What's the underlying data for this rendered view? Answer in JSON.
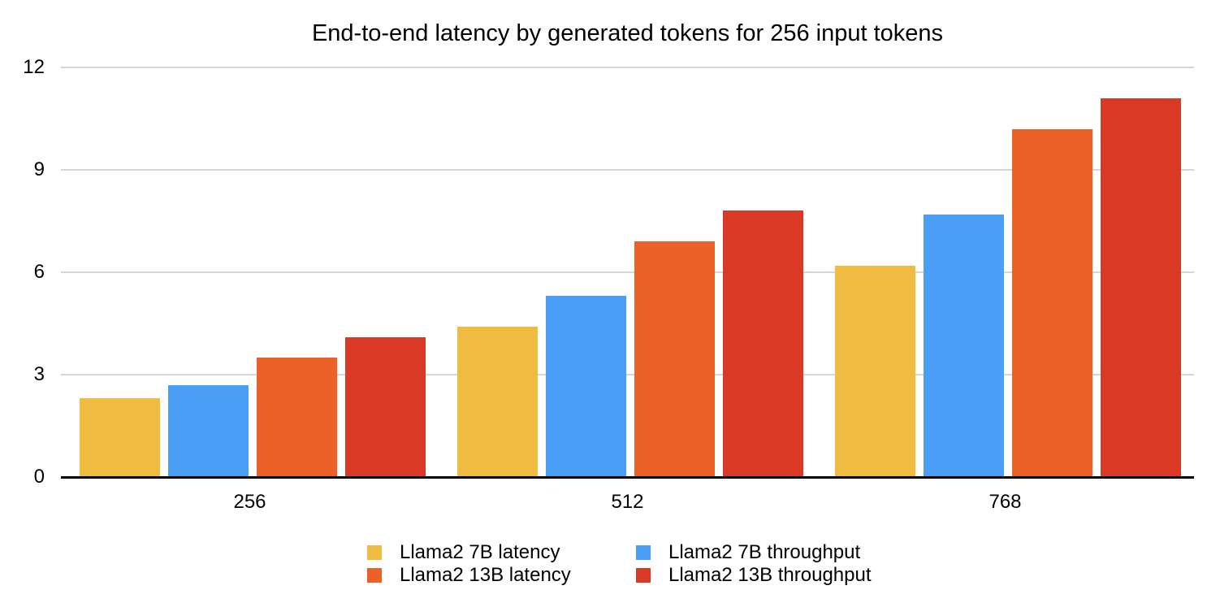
{
  "chart_data": {
    "type": "bar",
    "title": "End-to-end latency by generated tokens for 256 input tokens",
    "categories": [
      "256",
      "512",
      "768"
    ],
    "series": [
      {
        "name": "Llama2 7B latency",
        "color": "#EFBB40",
        "values": [
          2.3,
          4.4,
          6.2
        ]
      },
      {
        "name": "Llama2 7B throughput",
        "color": "#4A9FF5",
        "values": [
          2.7,
          5.3,
          7.7
        ]
      },
      {
        "name": "Llama2 13B latency",
        "color": "#EB6127",
        "values": [
          3.5,
          6.9,
          10.2
        ]
      },
      {
        "name": "Llama2 13B throughput",
        "color": "#DA3A25",
        "values": [
          4.1,
          7.8,
          11.1
        ]
      }
    ],
    "ylim": [
      0,
      12
    ],
    "yticks": [
      0,
      3,
      6,
      9,
      12
    ],
    "xlabel": "",
    "ylabel": "",
    "grid": true,
    "legend_position": "bottom",
    "gridline_color": "#D6D6D6",
    "axis_color": "#000000",
    "text_color": "#000000",
    "background_color": "#FFFFFF"
  }
}
